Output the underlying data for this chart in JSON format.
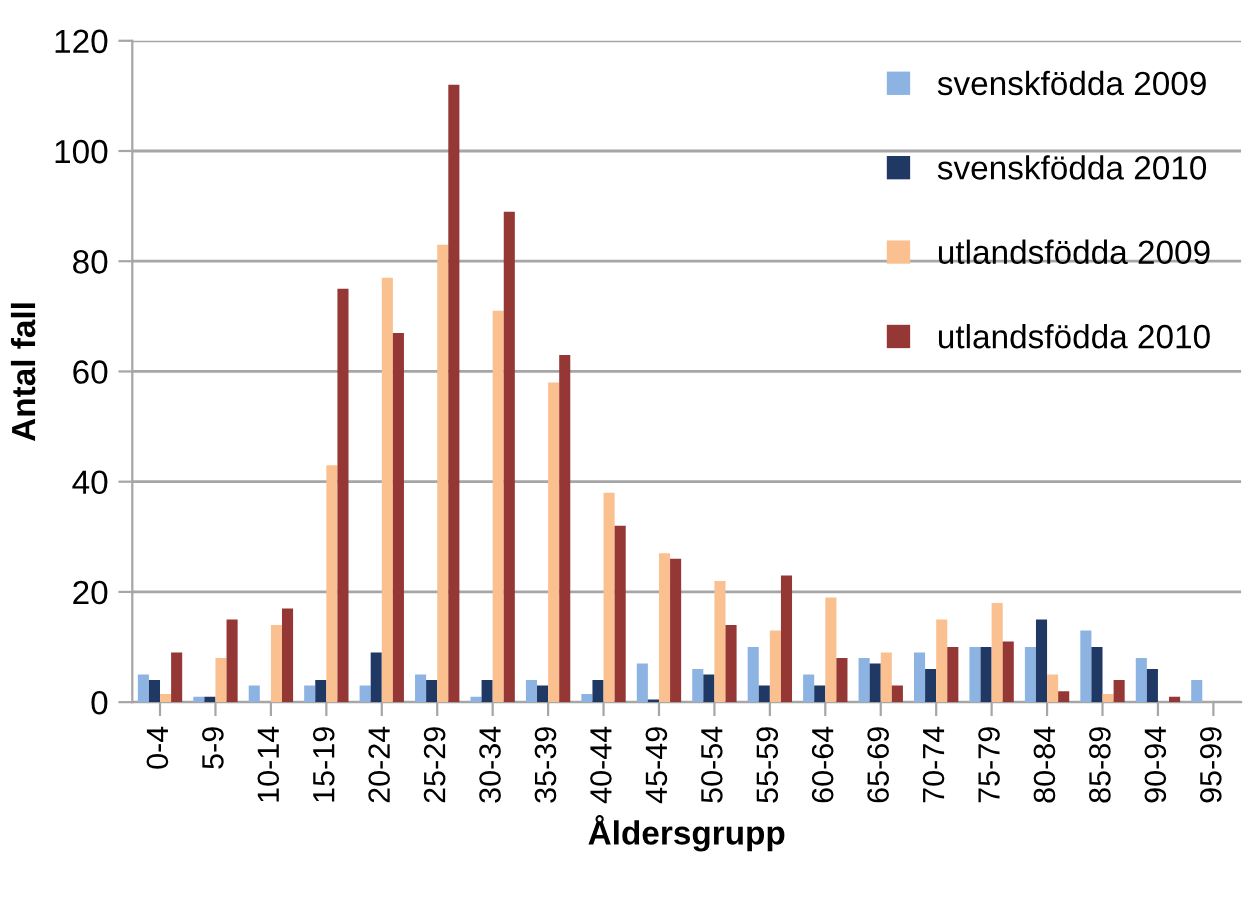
{
  "chart_data": {
    "type": "bar",
    "xlabel": "Åldersgrupp",
    "ylabel": "Antal fall",
    "categories": [
      "0-4",
      "5-9",
      "10-14",
      "15-19",
      "20-24",
      "25-29",
      "30-34",
      "35-39",
      "40-44",
      "45-49",
      "50-54",
      "55-59",
      "60-64",
      "65-69",
      "70-74",
      "75-79",
      "80-84",
      "85-89",
      "90-94",
      "95-99"
    ],
    "series": [
      {
        "name": "svenskfödda 2009",
        "color": "#8db3e2",
        "values": [
          5,
          1,
          3,
          3,
          3,
          5,
          1,
          4,
          1.5,
          7,
          6,
          10,
          5,
          8,
          9,
          10,
          10,
          13,
          8,
          4
        ]
      },
      {
        "name": "svenskfödda 2010",
        "color": "#1f3864",
        "values": [
          4,
          1,
          0,
          4,
          9,
          4,
          4,
          3,
          4,
          0.5,
          5,
          3,
          3,
          7,
          6,
          10,
          15,
          10,
          6,
          0
        ]
      },
      {
        "name": "utlandsfödda 2009",
        "color": "#fac090",
        "values": [
          1.5,
          8,
          14,
          43,
          77,
          83,
          71,
          58,
          38,
          27,
          22,
          13,
          19,
          9,
          15,
          18,
          5,
          1.5,
          0,
          0
        ]
      },
      {
        "name": "utlandsfödda 2010",
        "color": "#953735",
        "values": [
          9,
          15,
          17,
          75,
          67,
          112,
          89,
          63,
          32,
          26,
          14,
          23,
          8,
          3,
          10,
          11,
          2,
          4,
          1,
          0
        ]
      }
    ],
    "ylim": [
      0,
      120
    ],
    "yticks": [
      0,
      20,
      40,
      60,
      80,
      100,
      120
    ],
    "grid": "y",
    "legend": "top right"
  }
}
